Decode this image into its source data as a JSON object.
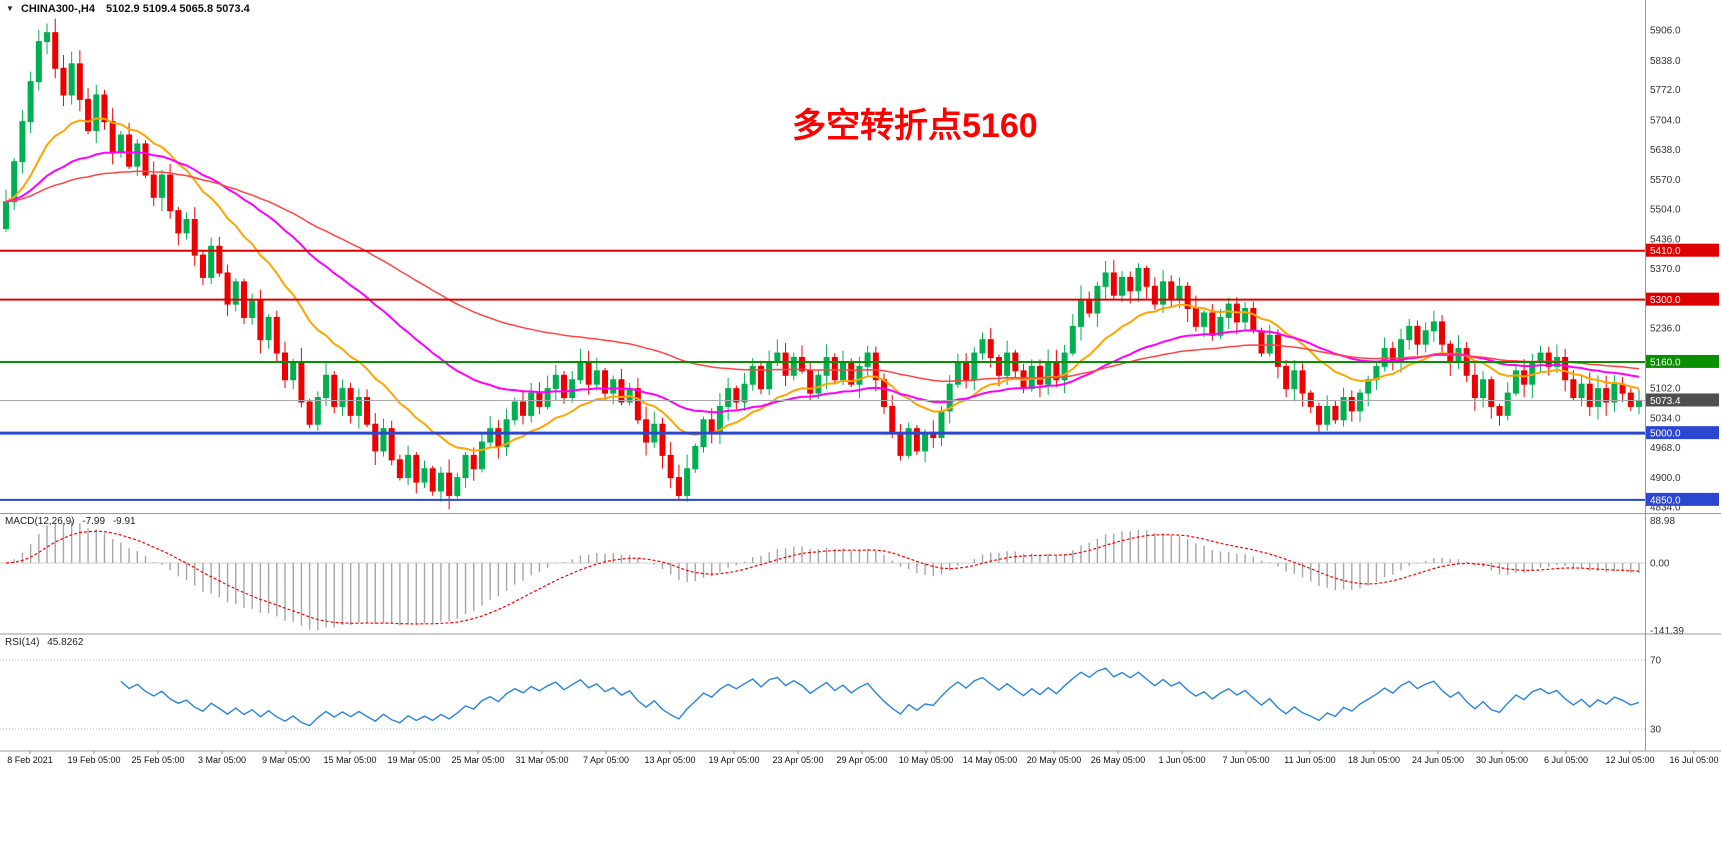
{
  "window": {
    "symbol": "CHINA300-,H4",
    "ohlc_text": "5102.9 5109.4 5065.8 5073.4"
  },
  "annotation": {
    "text": "多空转折点5160",
    "color": "#ff0000"
  },
  "indicators": {
    "macd": {
      "label": "MACD(12,26,9)",
      "value_main": "-7.99",
      "value_signal": "-9.91",
      "fast": 12,
      "slow": 26,
      "signal": 9,
      "axis": [
        "88.98",
        "0.00",
        "-141.39"
      ],
      "histogram_color": "#a6a6a6",
      "signal_color": "#ff0000"
    },
    "rsi": {
      "label": "RSI(14)",
      "value": "45.8262",
      "period": 14,
      "levels": [
        70,
        30
      ],
      "axis": [
        "70",
        "30"
      ],
      "line_color": "#2a84de"
    }
  },
  "price_axis": {
    "ticks": [
      5906.0,
      5838.0,
      5772.0,
      5704.0,
      5638.0,
      5570.0,
      5504.0,
      5436.0,
      5370.0,
      5236.0,
      5102.0,
      5034.0,
      4968.0,
      4900.0,
      4834.0
    ],
    "lines": [
      {
        "price": 5410.0,
        "label": "5410.0",
        "color": "#dd0000",
        "width": 2
      },
      {
        "price": 5300.0,
        "label": "5300.0",
        "color": "#dd0000",
        "width": 2
      },
      {
        "price": 5160.0,
        "label": "5160.0",
        "color": "#089000",
        "width": 2
      },
      {
        "price": 5000.0,
        "label": "5000.0",
        "color": "#2b46cf",
        "width": 3
      },
      {
        "price": 4850.0,
        "label": "4850.0",
        "color": "#2b46cf",
        "width": 2
      }
    ],
    "current": {
      "price": 5073.4,
      "label": "5073.4",
      "line_color": "#a9a9a9",
      "badge_color": "#4f4f4f"
    }
  },
  "time_axis": {
    "labels": [
      "8 Feb 2021",
      "19 Feb 05:00",
      "25 Feb 05:00",
      "3 Mar 05:00",
      "9 Mar 05:00",
      "15 Mar 05:00",
      "19 Mar 05:00",
      "25 Mar 05:00",
      "31 Mar 05:00",
      "7 Apr 05:00",
      "13 Apr 05:00",
      "19 Apr 05:00",
      "23 Apr 05:00",
      "29 Apr 05:00",
      "10 May 05:00",
      "14 May 05:00",
      "20 May 05:00",
      "26 May 05:00",
      "1 Jun 05:00",
      "7 Jun 05:00",
      "11 Jun 05:00",
      "18 Jun 05:00",
      "24 Jun 05:00",
      "30 Jun 05:00",
      "6 Jul 05:00",
      "12 Jul 05:00",
      "16 Jul 05:00"
    ]
  },
  "chart_data": {
    "type": "candlestick",
    "title": "CHINA300- H4",
    "timeframe": "H4",
    "ylim": [
      4834,
      5906
    ],
    "up_color": "#00b050",
    "down_color": "#ee0000",
    "horizontal_levels": [
      5410,
      5300,
      5160,
      5000,
      4850
    ],
    "current_price": 5073.4,
    "first_open": 5460,
    "closes": [
      5520,
      5610,
      5700,
      5790,
      5880,
      5900,
      5820,
      5760,
      5830,
      5750,
      5680,
      5760,
      5700,
      5630,
      5670,
      5600,
      5650,
      5580,
      5530,
      5580,
      5500,
      5450,
      5480,
      5400,
      5350,
      5420,
      5360,
      5290,
      5340,
      5260,
      5300,
      5210,
      5260,
      5180,
      5120,
      5160,
      5070,
      5020,
      5080,
      5130,
      5060,
      5100,
      5040,
      5080,
      5020,
      4960,
      5010,
      4940,
      4900,
      4950,
      4890,
      4920,
      4870,
      4910,
      4860,
      4900,
      4950,
      4920,
      4980,
      5010,
      4970,
      5030,
      5070,
      5040,
      5090,
      5060,
      5100,
      5130,
      5080,
      5120,
      5160,
      5110,
      5140,
      5090,
      5120,
      5070,
      5100,
      5030,
      4980,
      5020,
      4950,
      4900,
      4860,
      4920,
      4970,
      5030,
      5000,
      5060,
      5100,
      5070,
      5110,
      5150,
      5100,
      5160,
      5180,
      5130,
      5170,
      5140,
      5090,
      5130,
      5170,
      5120,
      5160,
      5110,
      5150,
      5180,
      5120,
      5060,
      5000,
      4950,
      5010,
      4960,
      5000,
      4990,
      5050,
      5110,
      5160,
      5120,
      5180,
      5210,
      5170,
      5130,
      5180,
      5140,
      5100,
      5150,
      5110,
      5160,
      5120,
      5180,
      5240,
      5300,
      5270,
      5330,
      5360,
      5310,
      5350,
      5320,
      5370,
      5330,
      5290,
      5340,
      5300,
      5330,
      5280,
      5240,
      5270,
      5220,
      5260,
      5290,
      5250,
      5280,
      5230,
      5180,
      5220,
      5150,
      5100,
      5140,
      5090,
      5060,
      5020,
      5060,
      5030,
      5080,
      5050,
      5090,
      5120,
      5150,
      5190,
      5160,
      5210,
      5240,
      5200,
      5230,
      5250,
      5200,
      5160,
      5190,
      5130,
      5080,
      5120,
      5060,
      5040,
      5090,
      5140,
      5110,
      5160,
      5180,
      5150,
      5170,
      5120,
      5080,
      5110,
      5060,
      5100,
      5070,
      5110,
      5090,
      5060,
      5073.4
    ],
    "moving_averages": [
      {
        "period": 16,
        "color": "#ffa500",
        "width": 2
      },
      {
        "period": 40,
        "color": "#ff00ff",
        "width": 2
      },
      {
        "period": 80,
        "color": "#ff4444",
        "width": 1.5
      }
    ]
  }
}
